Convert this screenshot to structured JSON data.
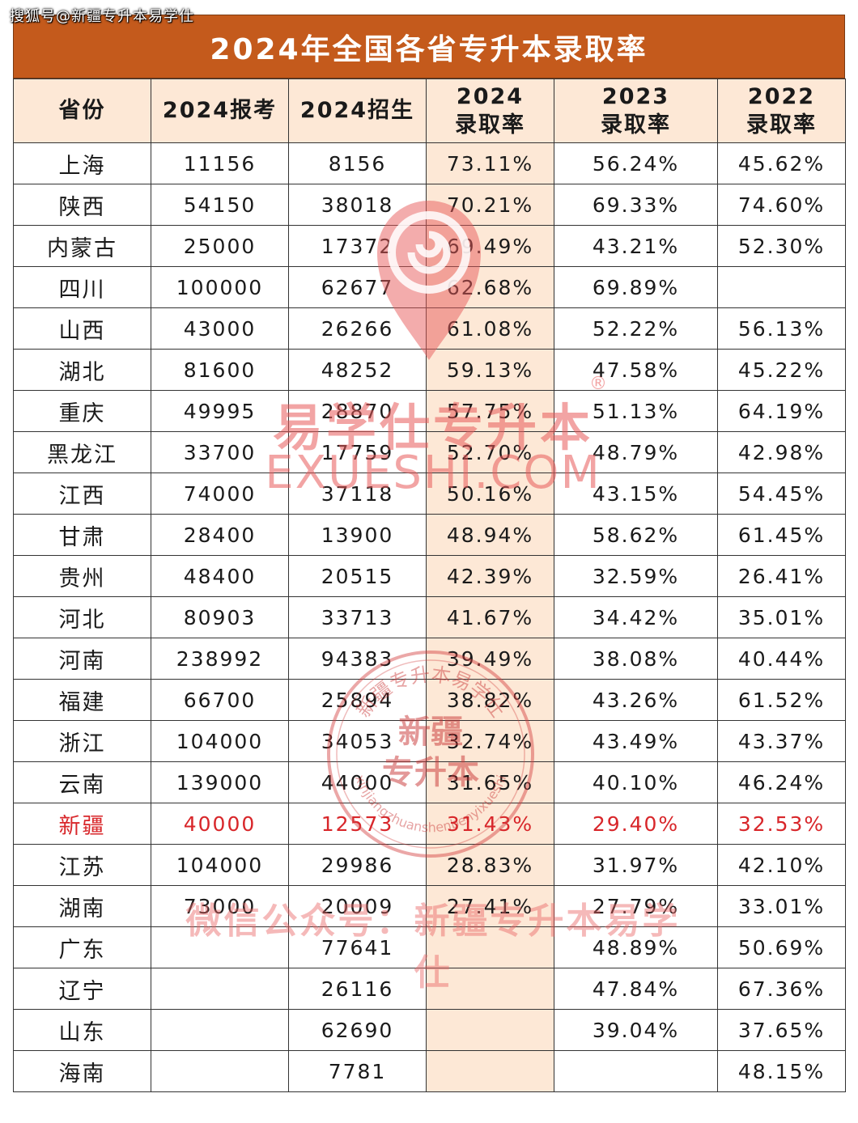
{
  "top_mark": "搜狐号@新疆专升本易学仕",
  "title": "2024年全国各省专升本录取率",
  "headers": {
    "province": "省份",
    "applicants_2024": "2024报考",
    "enrolled_2024": "2024招生",
    "rate_2024_year": "2024",
    "rate_2024_label": "录取率",
    "rate_2023_year": "2023",
    "rate_2023_label": "录取率",
    "rate_2022_year": "2022",
    "rate_2022_label": "录取率"
  },
  "rows": [
    {
      "province": "上海",
      "applicants_2024": "11156",
      "enrolled_2024": "8156",
      "rate_2024": "73.11%",
      "rate_2023": "56.24%",
      "rate_2022": "45.62%"
    },
    {
      "province": "陕西",
      "applicants_2024": "54150",
      "enrolled_2024": "38018",
      "rate_2024": "70.21%",
      "rate_2023": "69.33%",
      "rate_2022": "74.60%"
    },
    {
      "province": "内蒙古",
      "applicants_2024": "25000",
      "enrolled_2024": "17372",
      "rate_2024": "69.49%",
      "rate_2023": "43.21%",
      "rate_2022": "52.30%"
    },
    {
      "province": "四川",
      "applicants_2024": "100000",
      "enrolled_2024": "62677",
      "rate_2024": "62.68%",
      "rate_2023": "69.89%",
      "rate_2022": ""
    },
    {
      "province": "山西",
      "applicants_2024": "43000",
      "enrolled_2024": "26266",
      "rate_2024": "61.08%",
      "rate_2023": "52.22%",
      "rate_2022": "56.13%"
    },
    {
      "province": "湖北",
      "applicants_2024": "81600",
      "enrolled_2024": "48252",
      "rate_2024": "59.13%",
      "rate_2023": "47.58%",
      "rate_2022": "45.22%"
    },
    {
      "province": "重庆",
      "applicants_2024": "49995",
      "enrolled_2024": "28870",
      "rate_2024": "57.75%",
      "rate_2023": "51.13%",
      "rate_2022": "64.19%"
    },
    {
      "province": "黑龙江",
      "applicants_2024": "33700",
      "enrolled_2024": "17759",
      "rate_2024": "52.70%",
      "rate_2023": "48.79%",
      "rate_2022": "42.98%"
    },
    {
      "province": "江西",
      "applicants_2024": "74000",
      "enrolled_2024": "37118",
      "rate_2024": "50.16%",
      "rate_2023": "43.15%",
      "rate_2022": "54.45%"
    },
    {
      "province": "甘肃",
      "applicants_2024": "28400",
      "enrolled_2024": "13900",
      "rate_2024": "48.94%",
      "rate_2023": "58.62%",
      "rate_2022": "61.45%"
    },
    {
      "province": "贵州",
      "applicants_2024": "48400",
      "enrolled_2024": "20515",
      "rate_2024": "42.39%",
      "rate_2023": "32.59%",
      "rate_2022": "26.41%"
    },
    {
      "province": "河北",
      "applicants_2024": "80903",
      "enrolled_2024": "33713",
      "rate_2024": "41.67%",
      "rate_2023": "34.42%",
      "rate_2022": "35.01%"
    },
    {
      "province": "河南",
      "applicants_2024": "238992",
      "enrolled_2024": "94383",
      "rate_2024": "39.49%",
      "rate_2023": "38.08%",
      "rate_2022": "40.44%"
    },
    {
      "province": "福建",
      "applicants_2024": "66700",
      "enrolled_2024": "25894",
      "rate_2024": "38.82%",
      "rate_2023": "43.26%",
      "rate_2022": "61.52%"
    },
    {
      "province": "浙江",
      "applicants_2024": "104000",
      "enrolled_2024": "34053",
      "rate_2024": "32.74%",
      "rate_2023": "43.49%",
      "rate_2022": "43.37%"
    },
    {
      "province": "云南",
      "applicants_2024": "139000",
      "enrolled_2024": "44000",
      "rate_2024": "31.65%",
      "rate_2023": "40.10%",
      "rate_2022": "46.24%"
    },
    {
      "province": "新疆",
      "applicants_2024": "40000",
      "enrolled_2024": "12573",
      "rate_2024": "31.43%",
      "rate_2023": "29.40%",
      "rate_2022": "32.53%",
      "highlight": true
    },
    {
      "province": "江苏",
      "applicants_2024": "104000",
      "enrolled_2024": "29986",
      "rate_2024": "28.83%",
      "rate_2023": "31.97%",
      "rate_2022": "42.10%"
    },
    {
      "province": "湖南",
      "applicants_2024": "73000",
      "enrolled_2024": "20009",
      "rate_2024": "27.41%",
      "rate_2023": "27.79%",
      "rate_2022": "33.01%"
    },
    {
      "province": "广东",
      "applicants_2024": "",
      "enrolled_2024": "77641",
      "rate_2024": "",
      "rate_2023": "48.89%",
      "rate_2022": "50.69%"
    },
    {
      "province": "辽宁",
      "applicants_2024": "",
      "enrolled_2024": "26116",
      "rate_2024": "",
      "rate_2023": "47.84%",
      "rate_2022": "67.36%"
    },
    {
      "province": "山东",
      "applicants_2024": "",
      "enrolled_2024": "62690",
      "rate_2024": "",
      "rate_2023": "39.04%",
      "rate_2022": "37.65%"
    },
    {
      "province": "海南",
      "applicants_2024": "",
      "enrolled_2024": "7781",
      "rate_2024": "",
      "rate_2023": "",
      "rate_2022": "48.15%"
    }
  ],
  "watermarks": {
    "brand": "易学仕专升本",
    "registered": "®",
    "domain": "EXUESHI.COM",
    "seal_arc": "新疆专升本易学仕",
    "seal_center_1": "新疆",
    "seal_center_2": "专升本",
    "seal_pinyin": "xinjiangzhuanshenbenyixueshi",
    "wechat": "微信公众号：新疆专升本易学仕"
  },
  "colors": {
    "title_bg": "#c45a1c",
    "header_bg": "#fde8d6",
    "highlight_text": "#d8262a",
    "watermark": "#e85a5a"
  }
}
